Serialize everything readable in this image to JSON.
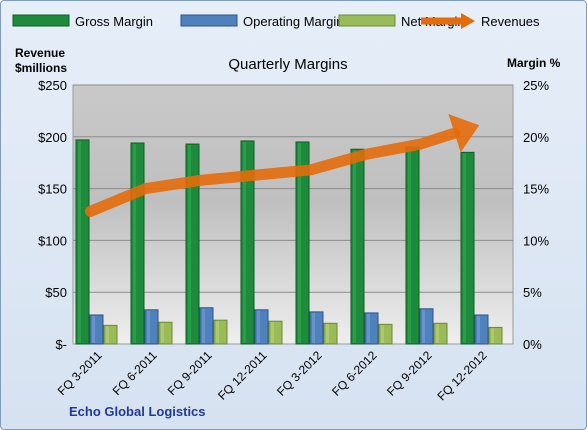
{
  "chart_data": {
    "type": "bar",
    "title": "Quarterly Margins",
    "categories": [
      "FQ 3-2011",
      "FQ 6-2011",
      "FQ 9-2011",
      "FQ 12-2011",
      "FQ 3-2012",
      "FQ 6-2012",
      "FQ 9-2012",
      "FQ 12-2012"
    ],
    "series": [
      {
        "name": "Gross Margin",
        "axis": "right",
        "color": "#1e8a3c",
        "values": [
          19.7,
          19.4,
          19.3,
          19.6,
          19.5,
          18.8,
          19.0,
          18.5
        ]
      },
      {
        "name": "Operating Margin",
        "axis": "right",
        "color": "#4f81bd",
        "values": [
          2.8,
          3.3,
          3.5,
          3.3,
          3.1,
          3.0,
          3.4,
          2.8
        ]
      },
      {
        "name": "Net Margin",
        "axis": "right",
        "color": "#9bbb59",
        "values": [
          1.8,
          2.1,
          2.3,
          2.2,
          2.0,
          1.9,
          2.0,
          1.6
        ]
      },
      {
        "name": "Revenues",
        "type": "line",
        "axis": "left",
        "color": "#e46c0a",
        "values": [
          128,
          150,
          158,
          163,
          168,
          183,
          193,
          210
        ]
      }
    ],
    "ylabel_left": "Revenue $millions",
    "ylabel_right": "Margin %",
    "ylim_left": [
      0,
      250
    ],
    "ylim_right": [
      0,
      25
    ],
    "yticks_left": [
      "$-",
      "$50",
      "$100",
      "$150",
      "$200",
      "$250"
    ],
    "yticks_right": [
      "0%",
      "5%",
      "10%",
      "15%",
      "20%",
      "25%"
    ],
    "legend_position": "top",
    "grid": true
  },
  "labels": {
    "ylabel_left_line1": "Revenue",
    "ylabel_left_line2": "$millions",
    "ylabel_right": "Margin %",
    "footer": "Echo Global Logistics"
  }
}
